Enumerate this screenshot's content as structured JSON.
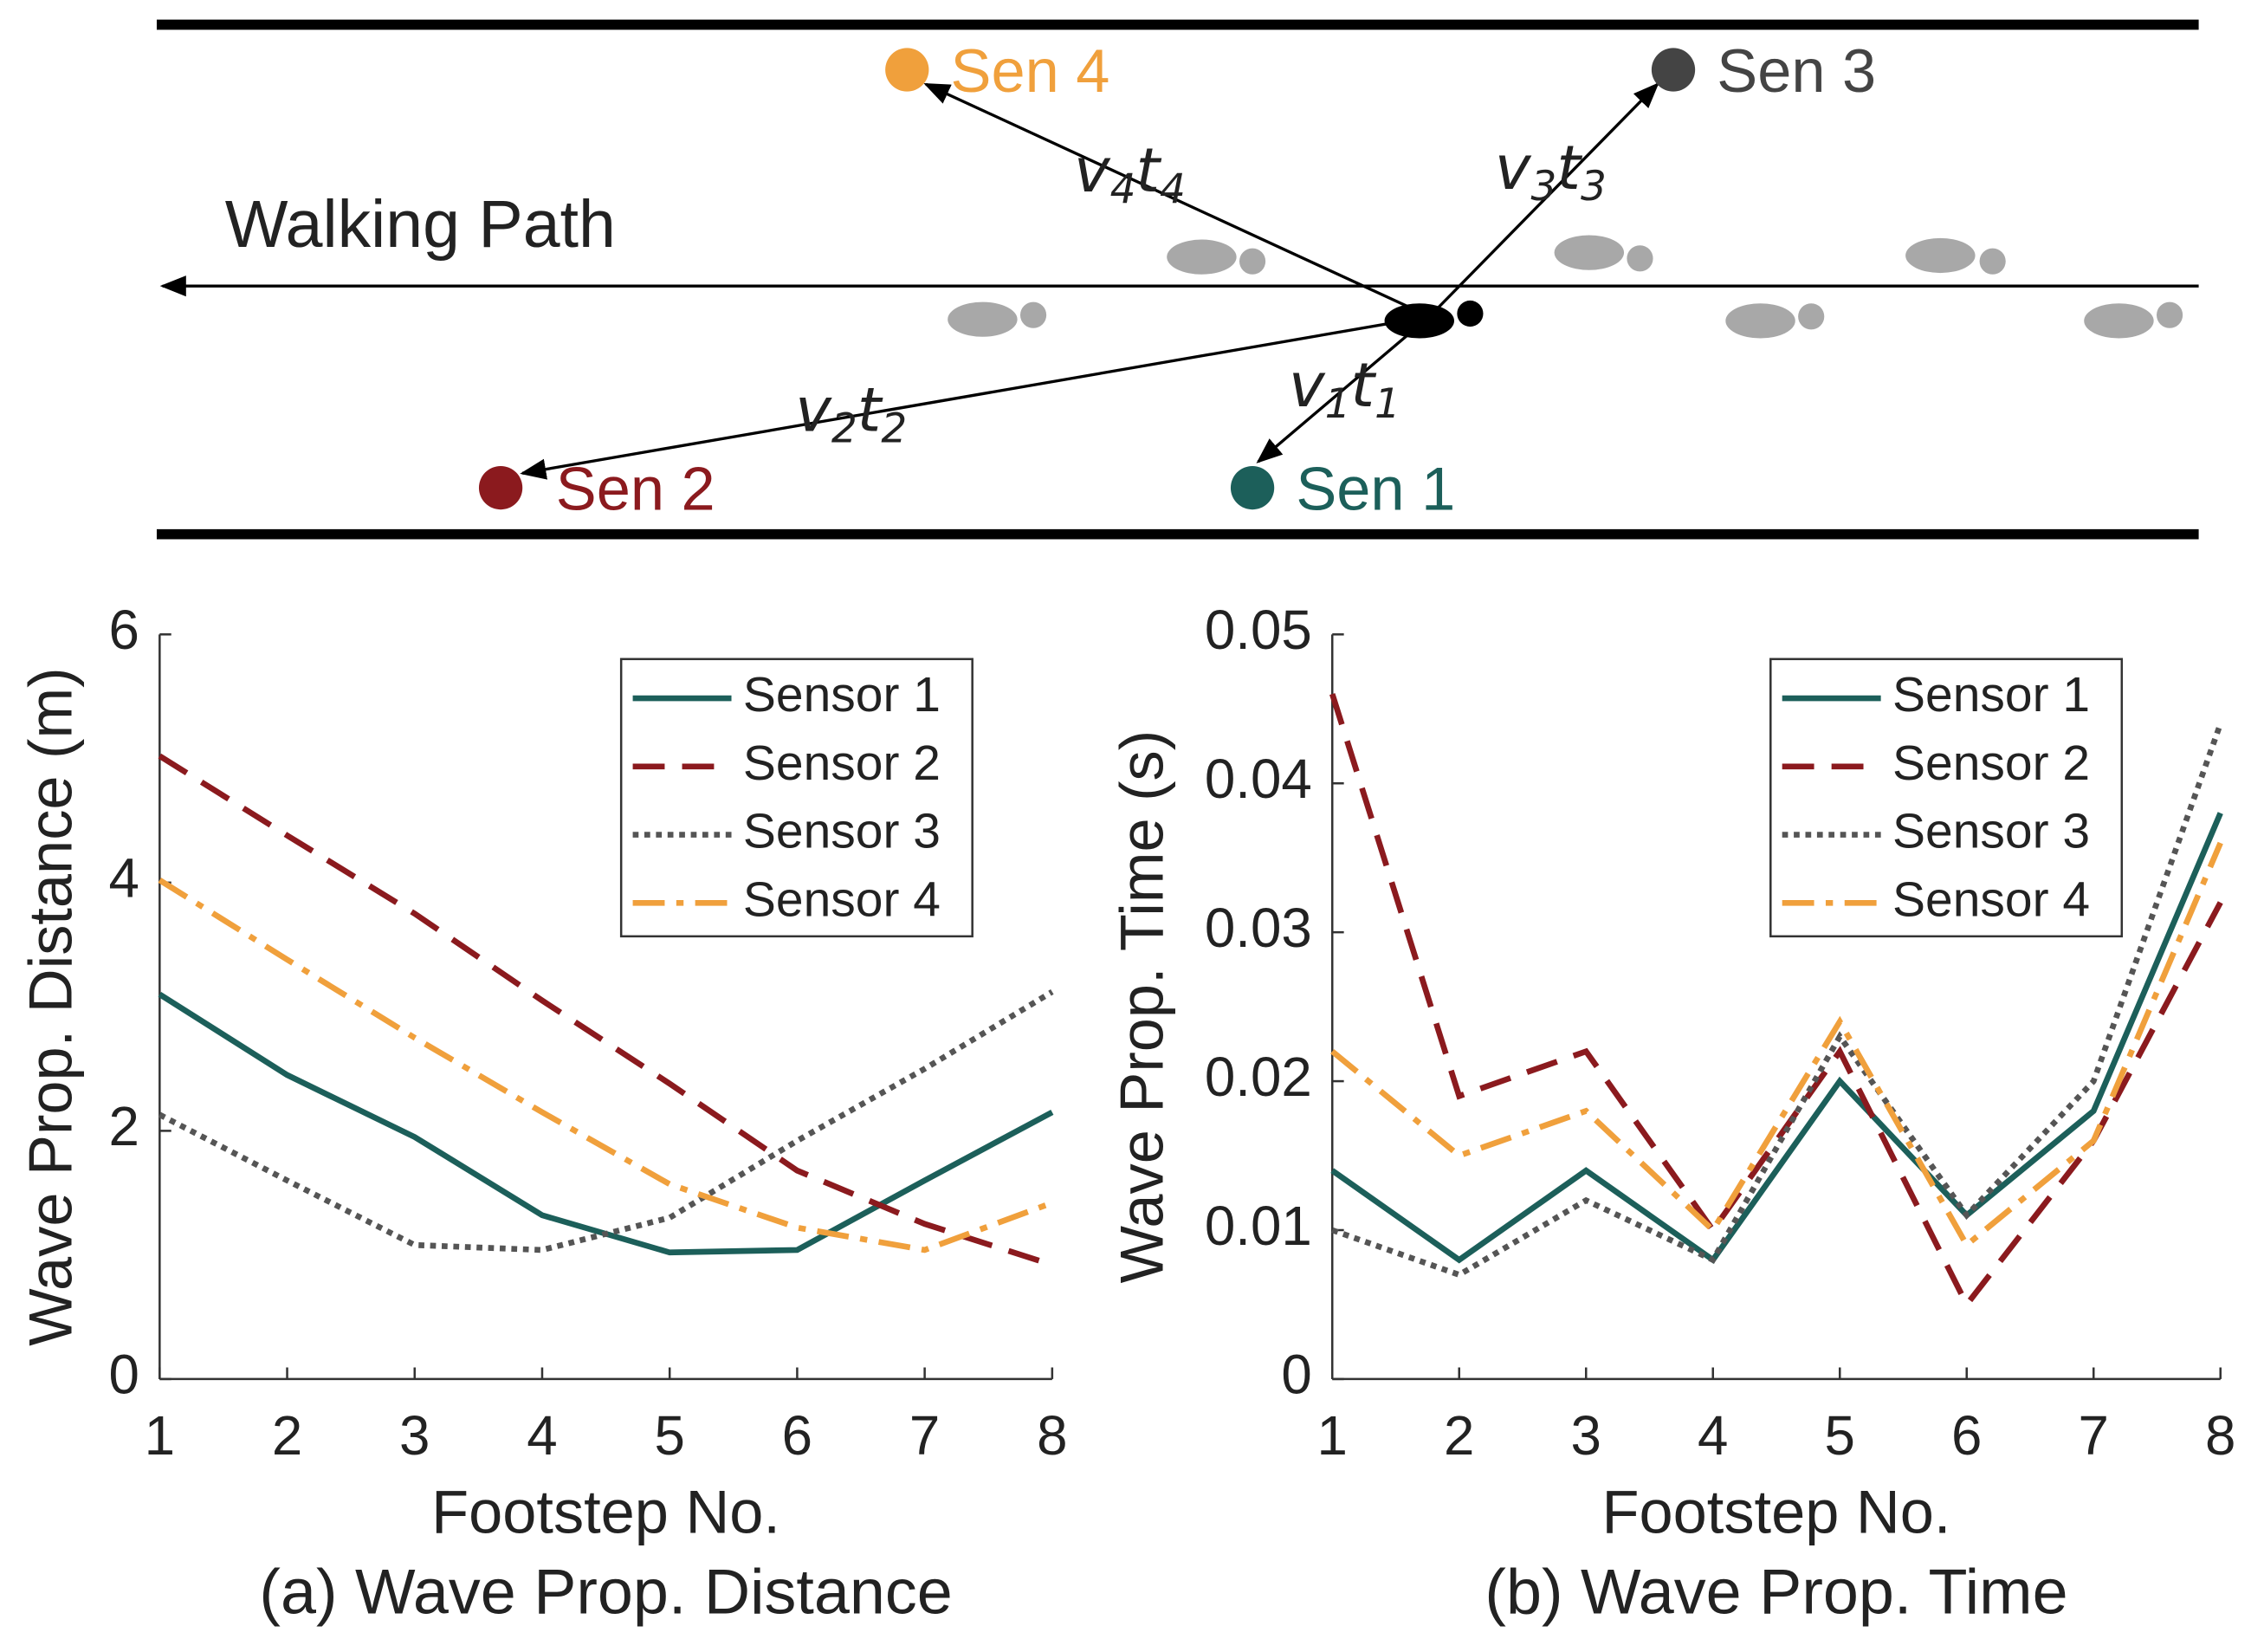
{
  "diagram": {
    "path_label": "Walking Path",
    "sensors": [
      {
        "label": "Sen 1",
        "color": "#1c5f5a"
      },
      {
        "label": "Sen 2",
        "color": "#8b1a1e"
      },
      {
        "label": "Sen 3",
        "color": "#444444"
      },
      {
        "label": "Sen 4",
        "color": "#f0a03c"
      }
    ],
    "distance_labels": [
      [
        "v",
        "1",
        "t",
        "1"
      ],
      [
        "v",
        "2",
        "t",
        "2"
      ],
      [
        "v",
        "3",
        "t",
        "3"
      ],
      [
        "v",
        "4",
        "t",
        "4"
      ]
    ]
  },
  "chart_data": [
    {
      "type": "line",
      "caption": "(a) Wave Prop. Distance",
      "x_label": "Footstep No.",
      "y_label": "Wave Prop. Distance (m)",
      "x": [
        1,
        2,
        3,
        4,
        5,
        6,
        7,
        8
      ],
      "xlim": [
        1,
        8
      ],
      "xticks": [
        1,
        2,
        3,
        4,
        5,
        6,
        7,
        8
      ],
      "ylim": [
        0,
        6
      ],
      "yticks": [
        0,
        2,
        4,
        6
      ],
      "legend": "upper right",
      "series": [
        {
          "name": "Sensor 1",
          "color": "#1c5f5a",
          "dash": "solid",
          "values": [
            3.1,
            2.45,
            1.95,
            1.32,
            1.02,
            1.04,
            1.6,
            2.15
          ]
        },
        {
          "name": "Sensor 2",
          "color": "#8b1a1e",
          "dash": "dashed",
          "values": [
            5.02,
            4.38,
            3.75,
            3.05,
            2.38,
            1.68,
            1.25,
            0.92
          ]
        },
        {
          "name": "Sensor 3",
          "color": "#555555",
          "dash": "dotted",
          "values": [
            2.13,
            1.6,
            1.08,
            1.04,
            1.3,
            1.92,
            2.5,
            3.12
          ]
        },
        {
          "name": "Sensor 4",
          "color": "#f0a03c",
          "dash": "dashdot",
          "values": [
            4.02,
            3.38,
            2.75,
            2.15,
            1.57,
            1.22,
            1.04,
            1.42
          ]
        }
      ]
    },
    {
      "type": "line",
      "caption": "(b) Wave Prop. Time",
      "x_label": "Footstep No.",
      "y_label": "Wave Prop. Time (s)",
      "x": [
        1,
        2,
        3,
        4,
        5,
        6,
        7,
        8
      ],
      "xlim": [
        1,
        8
      ],
      "xticks": [
        1,
        2,
        3,
        4,
        5,
        6,
        7,
        8
      ],
      "ylim": [
        0,
        0.05
      ],
      "yticks": [
        0,
        0.01,
        0.02,
        0.03,
        0.04,
        0.05
      ],
      "legend": "upper right",
      "series": [
        {
          "name": "Sensor 1",
          "color": "#1c5f5a",
          "dash": "solid",
          "values": [
            0.014,
            0.008,
            0.014,
            0.008,
            0.02,
            0.011,
            0.018,
            0.038
          ]
        },
        {
          "name": "Sensor 2",
          "color": "#8b1a1e",
          "dash": "dashed",
          "values": [
            0.046,
            0.019,
            0.022,
            0.01,
            0.022,
            0.005,
            0.016,
            0.032
          ]
        },
        {
          "name": "Sensor 3",
          "color": "#555555",
          "dash": "dotted",
          "values": [
            0.01,
            0.007,
            0.012,
            0.008,
            0.023,
            0.011,
            0.02,
            0.044
          ]
        },
        {
          "name": "Sensor 4",
          "color": "#f0a03c",
          "dash": "dashdot",
          "values": [
            0.022,
            0.015,
            0.018,
            0.01,
            0.024,
            0.009,
            0.016,
            0.036
          ]
        }
      ]
    }
  ]
}
